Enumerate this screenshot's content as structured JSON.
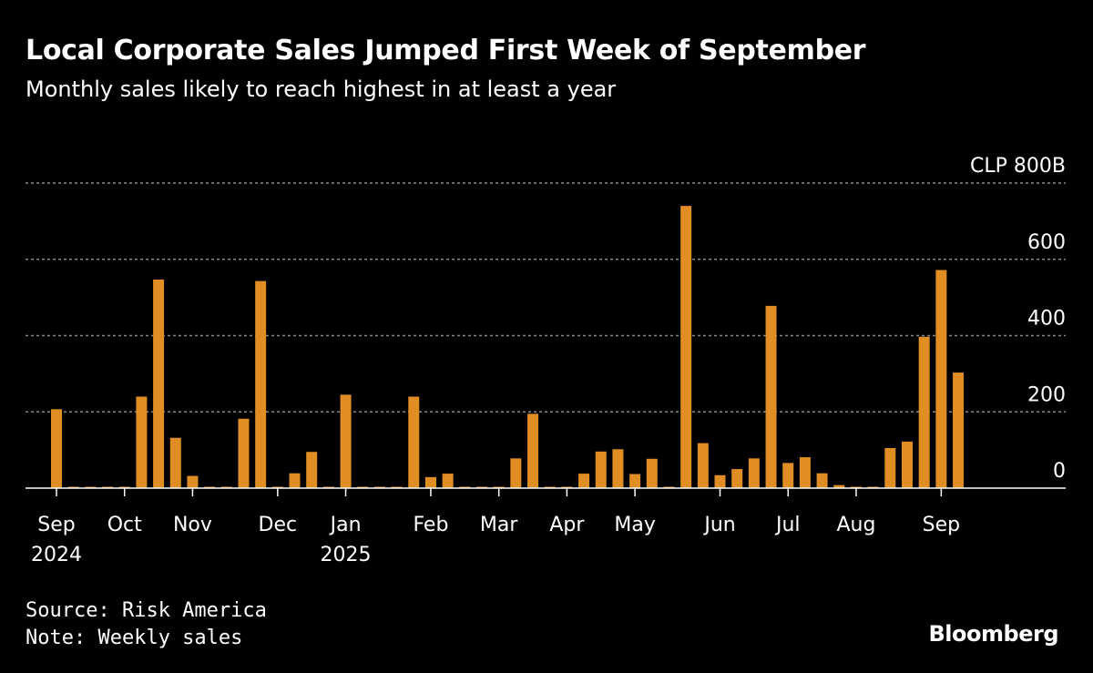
{
  "colors": {
    "bar": "#e08d23",
    "background": "#000000",
    "grid": "#888888"
  },
  "chart_data": {
    "type": "bar",
    "title": "Local Corporate Sales Jumped First Week of September",
    "subtitle": "Monthly sales likely to reach highest in at least a year",
    "unit_label": "CLP 800B",
    "ylim": [
      0,
      800
    ],
    "y_ticks": [
      {
        "value": 800,
        "label": "CLP 800B"
      },
      {
        "value": 600,
        "label": "600"
      },
      {
        "value": 400,
        "label": "400"
      },
      {
        "value": 200,
        "label": "200"
      },
      {
        "value": 0,
        "label": "0"
      }
    ],
    "x_labels": [
      {
        "label": "Sep",
        "sublabel": "2024",
        "week": 0
      },
      {
        "label": "Oct",
        "week": 4
      },
      {
        "label": "Nov",
        "week": 8
      },
      {
        "label": "Dec",
        "week": 13
      },
      {
        "label": "Jan",
        "sublabel": "2025",
        "week": 17
      },
      {
        "label": "Feb",
        "week": 22
      },
      {
        "label": "Mar",
        "week": 26
      },
      {
        "label": "Apr",
        "week": 30
      },
      {
        "label": "May",
        "week": 34
      },
      {
        "label": "Jun",
        "week": 39
      },
      {
        "label": "Jul",
        "week": 43
      },
      {
        "label": "Aug",
        "week": 47
      },
      {
        "label": "Sep",
        "week": 52
      }
    ],
    "values": [
      207,
      2,
      2,
      2,
      2,
      240,
      547,
      132,
      32,
      2,
      2,
      182,
      543,
      2,
      39,
      95,
      2,
      245,
      2,
      2,
      2,
      240,
      29,
      38,
      2,
      2,
      2,
      78,
      195,
      2,
      2,
      38,
      96,
      102,
      37,
      77,
      2,
      740,
      118,
      34,
      50,
      78,
      478,
      66,
      81,
      39,
      8,
      2,
      2,
      105,
      122,
      397,
      572,
      303
    ],
    "grid": true,
    "legend": "none"
  },
  "footer": {
    "source": "Source: Risk America",
    "note": "Note: Weekly sales",
    "brand": "Bloomberg"
  }
}
